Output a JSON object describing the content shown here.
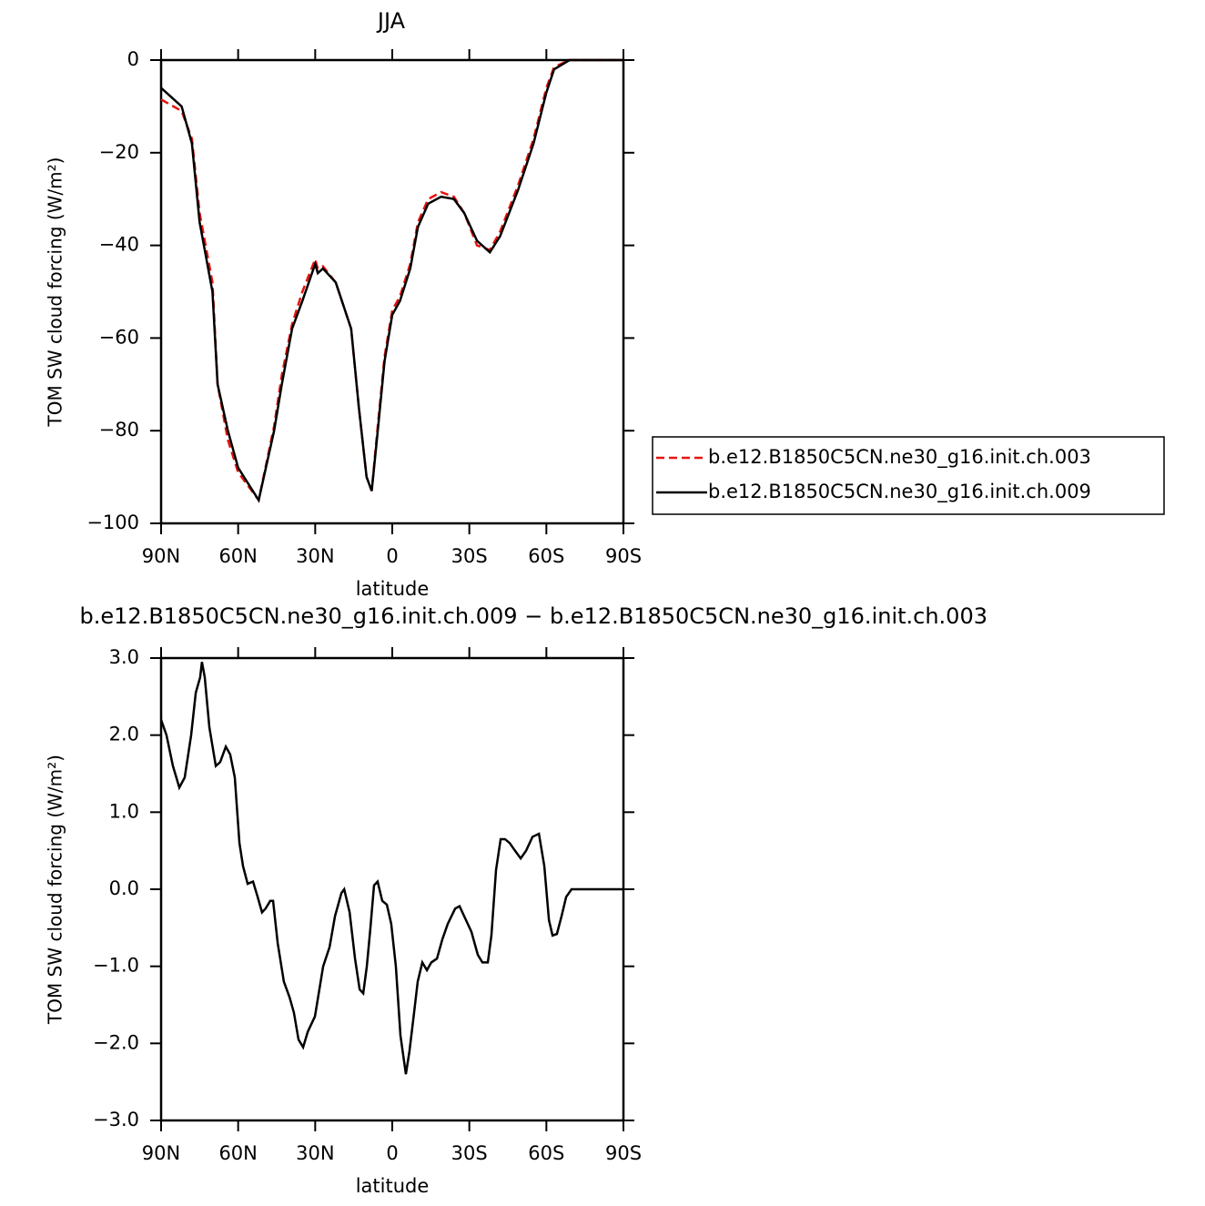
{
  "chart_data": [
    {
      "type": "line",
      "title": "JJA",
      "xlabel": "latitude",
      "ylabel": "TOM SW cloud forcing (W/m²)",
      "x": [
        90,
        82,
        78,
        75,
        70,
        68,
        64,
        60,
        52,
        46,
        43,
        39,
        35,
        30,
        29,
        27,
        22,
        16,
        13,
        10,
        8,
        6,
        3,
        0,
        -3,
        -7,
        -10,
        -14,
        -19,
        -24,
        -28,
        -33,
        -38,
        -42,
        -49,
        -55,
        -60,
        -63,
        -69,
        -80,
        -90
      ],
      "series": [
        {
          "name": "b.e12.B1850C5CN.ne30_g16.init.ch.003",
          "color": "#e8120c",
          "dashed": true,
          "values": [
            -8.5,
            -11,
            -17,
            -33,
            -48,
            -70,
            -82,
            -89,
            -95,
            -79,
            -68,
            -57,
            -50,
            -43,
            -45,
            -44.5,
            -48,
            -58,
            -75,
            -90,
            -93,
            -81,
            -64,
            -54,
            -51,
            -44,
            -35,
            -30,
            -28.5,
            -29.5,
            -33,
            -40,
            -41,
            -37,
            -27,
            -17,
            -6,
            -1.5,
            0,
            0,
            0
          ]
        },
        {
          "name": "b.e12.B1850C5CN.ne30_g16.init.ch.009",
          "color": "#000000",
          "dashed": false,
          "values": [
            -6,
            -10,
            -18,
            -35,
            -50,
            -70,
            -80,
            -88,
            -95,
            -80,
            -70,
            -58,
            -52,
            -44,
            -46,
            -45,
            -48,
            -58,
            -75,
            -90,
            -93,
            -82,
            -65,
            -55,
            -52,
            -45,
            -36,
            -31,
            -29.5,
            -30,
            -33,
            -39,
            -41.5,
            -38,
            -28,
            -18,
            -7,
            -2,
            0,
            0,
            0
          ]
        }
      ],
      "xlim": [
        90,
        -90
      ],
      "xticks": [
        {
          "value": 90,
          "label": "90N"
        },
        {
          "value": 60,
          "label": "60N"
        },
        {
          "value": 30,
          "label": "30N"
        },
        0,
        {
          "value": -30,
          "label": "30S"
        },
        {
          "value": -60,
          "label": "60S"
        },
        {
          "value": -90,
          "label": "90S"
        }
      ],
      "ylim": [
        -100,
        0
      ],
      "yticks": [
        0,
        {
          "value": -20,
          "label": "−20"
        },
        {
          "value": -40,
          "label": "−40"
        },
        {
          "value": -60,
          "label": "−60"
        },
        {
          "value": -80,
          "label": "−80"
        },
        {
          "value": -100,
          "label": "−100"
        }
      ],
      "legend": "right"
    },
    {
      "type": "line",
      "title": "b.e12.B1850C5CN.ne30_g16.init.ch.009 − b.e12.B1850C5CN.ne30_g16.init.ch.003",
      "xlabel": "latitude",
      "ylabel": "TOM SW cloud forcing (W/m²)",
      "x": [
        90,
        87.9,
        85.4,
        82.9,
        80.8,
        78.3,
        76.5,
        74.8,
        74.1,
        73.0,
        71.2,
        68.7,
        67.0,
        64.8,
        63.1,
        61.3,
        59.5,
        58.1,
        56.3,
        54.2,
        52.4,
        50.7,
        49.3,
        47.5,
        46.4,
        44.6,
        42.2,
        40.0,
        38.3,
        36.5,
        34.7,
        32.9,
        30.1,
        26.9,
        24.4,
        22.3,
        19.8,
        18.7,
        16.6,
        14.5,
        12.7,
        11.3,
        9.9,
        8.5,
        7.1,
        5.7,
        3.9,
        2.1,
        0.4,
        -1.4,
        -3.2,
        -5.3,
        -6.7,
        -8.5,
        -9.9,
        -11.7,
        -13.5,
        -15.2,
        -17.4,
        -19.5,
        -21.6,
        -24.5,
        -26.2,
        -28.0,
        -30.8,
        -33.3,
        -35.1,
        -37.2,
        -38.6,
        -40.4,
        -42.2,
        -43.9,
        -45.7,
        -47.8,
        -50.0,
        -52.1,
        -54.6,
        -57.1,
        -59.2,
        -61.0,
        -62.4,
        -64.1,
        -65.9,
        -67.7,
        -69.8,
        -74.1,
        -90
      ],
      "values": [
        2.2,
        2.0,
        1.6,
        1.32,
        1.45,
        2.0,
        2.55,
        2.75,
        2.95,
        2.75,
        2.1,
        1.6,
        1.65,
        1.85,
        1.75,
        1.45,
        0.6,
        0.3,
        0.07,
        0.1,
        -0.1,
        -0.3,
        -0.25,
        -0.15,
        -0.15,
        -0.7,
        -1.2,
        -1.4,
        -1.6,
        -1.95,
        -2.05,
        -1.85,
        -1.65,
        -1.0,
        -0.75,
        -0.35,
        -0.05,
        0.0,
        -0.3,
        -0.9,
        -1.3,
        -1.35,
        -1.0,
        -0.5,
        0.05,
        0.1,
        -0.15,
        -0.2,
        -0.45,
        -1.0,
        -1.9,
        -2.4,
        -2.1,
        -1.6,
        -1.2,
        -0.95,
        -1.05,
        -0.95,
        -0.9,
        -0.65,
        -0.45,
        -0.25,
        -0.22,
        -0.35,
        -0.55,
        -0.85,
        -0.95,
        -0.95,
        -0.6,
        0.25,
        0.65,
        0.65,
        0.6,
        0.5,
        0.4,
        0.5,
        0.68,
        0.72,
        0.3,
        -0.4,
        -0.6,
        -0.58,
        -0.35,
        -0.1,
        0.0,
        0.0,
        0.0
      ],
      "color": "#000000",
      "xlim": [
        90,
        -90
      ],
      "xticks": [
        {
          "value": 90,
          "label": "90N"
        },
        {
          "value": 60,
          "label": "60N"
        },
        {
          "value": 30,
          "label": "30N"
        },
        0,
        {
          "value": -30,
          "label": "30S"
        },
        {
          "value": -60,
          "label": "60S"
        },
        {
          "value": -90,
          "label": "90S"
        }
      ],
      "ylim": [
        -3,
        3
      ],
      "yticks": [
        {
          "value": 3,
          "label": "3.0"
        },
        {
          "value": 2,
          "label": "2.0"
        },
        {
          "value": 1,
          "label": "1.0"
        },
        {
          "value": 0,
          "label": "0.0"
        },
        {
          "value": -1,
          "label": "−1.0"
        },
        {
          "value": -2,
          "label": "−2.0"
        },
        {
          "value": -3,
          "label": "−3.0"
        }
      ]
    }
  ]
}
